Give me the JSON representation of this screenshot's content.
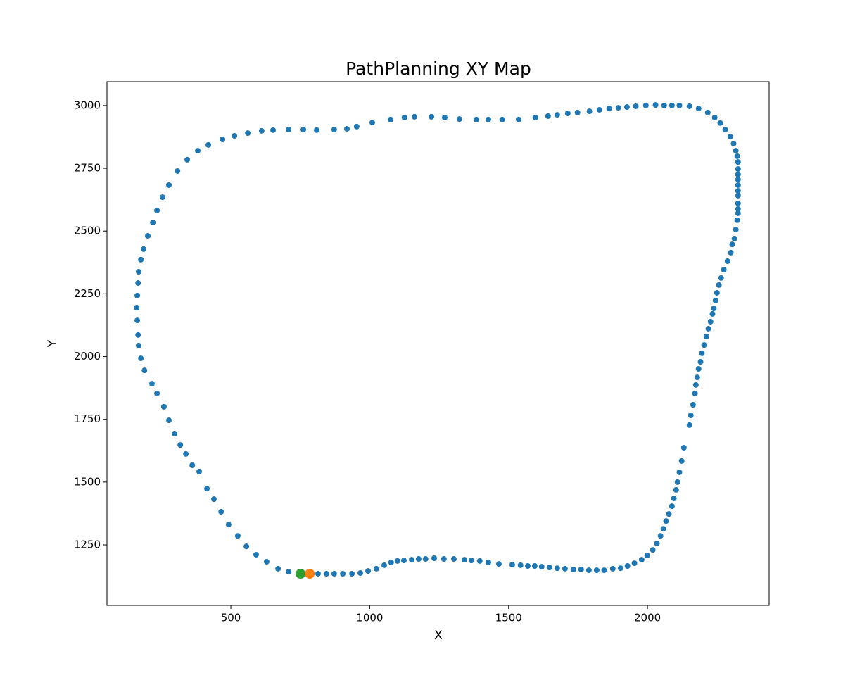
{
  "chart_data": {
    "type": "scatter",
    "title": "PathPlanning XY Map",
    "xlabel": "X",
    "ylabel": "Y",
    "xlim": [
      54,
      2438
    ],
    "ylim": [
      1009,
      3095
    ],
    "xticks": [
      500,
      1000,
      1500,
      2000
    ],
    "yticks": [
      1250,
      1500,
      1750,
      2000,
      2250,
      2500,
      2750,
      3000
    ],
    "series": [
      {
        "color": "#1f77b4",
        "size": 4,
        "x": [
          708,
          670,
          629,
          591,
          556,
          525,
          492,
          465,
          439,
          414,
          386,
          361,
          338,
          318,
          297,
          277,
          259,
          234,
          216,
          189,
          176,
          168,
          166,
          163,
          161,
          163,
          166,
          168,
          176,
          186,
          201,
          219,
          234,
          254,
          277,
          308,
          343,
          381,
          419,
          470,
          513,
          561,
          611,
          652,
          708,
          761,
          809,
          872,
          918,
          953,
          1009,
          1075,
          1125,
          1161,
          1222,
          1270,
          1323,
          1384,
          1427,
          1477,
          1536,
          1596,
          1642,
          1675,
          1713,
          1748,
          1791,
          1827,
          1862,
          1895,
          1926,
          1958,
          1994,
          2029,
          2060,
          2088,
          2115,
          2151,
          2184,
          2217,
          2242,
          2262,
          2280,
          2298,
          2310,
          2318,
          2323,
          2326,
          2326,
          2326,
          2326,
          2326,
          2326,
          2326,
          2326,
          2326,
          2326,
          2323,
          2318,
          2313,
          2305,
          2300,
          2288,
          2275,
          2265,
          2257,
          2250,
          2245,
          2239,
          2234,
          2227,
          2219,
          2212,
          2204,
          2196,
          2191,
          2184,
          2179,
          2174,
          2171,
          2164,
          2156,
          2151,
          2131,
          2123,
          2115,
          2108,
          2103,
          2095,
          2088,
          2077,
          2067,
          2057,
          2047,
          2034,
          2019,
          1999,
          1979,
          1953,
          1928,
          1903,
          1875,
          1844,
          1817,
          1789,
          1761,
          1733,
          1703,
          1675,
          1647,
          1619,
          1594,
          1569,
          1543,
          1513,
          1465,
          1427,
          1396,
          1366,
          1341,
          1303,
          1267,
          1232,
          1201,
          1176,
          1151,
          1123,
          1100,
          1077,
          1052,
          1024,
          994,
          966,
          936,
          903,
          872,
          844,
          814
        ],
        "values": [
          1143,
          1155,
          1183,
          1211,
          1244,
          1286,
          1331,
          1382,
          1432,
          1474,
          1542,
          1567,
          1612,
          1648,
          1693,
          1746,
          1800,
          1853,
          1892,
          1945,
          1993,
          2044,
          2086,
          2144,
          2195,
          2243,
          2293,
          2338,
          2386,
          2428,
          2481,
          2534,
          2582,
          2635,
          2683,
          2739,
          2784,
          2820,
          2843,
          2865,
          2879,
          2890,
          2899,
          2902,
          2904,
          2904,
          2902,
          2904,
          2907,
          2916,
          2932,
          2944,
          2952,
          2955,
          2955,
          2952,
          2946,
          2944,
          2944,
          2944,
          2944,
          2952,
          2958,
          2963,
          2969,
          2972,
          2977,
          2983,
          2988,
          2991,
          2994,
          2997,
          3000,
          3002,
          3000,
          3000,
          3000,
          2997,
          2988,
          2972,
          2952,
          2930,
          2904,
          2876,
          2848,
          2820,
          2798,
          2775,
          2747,
          2725,
          2705,
          2683,
          2660,
          2641,
          2610,
          2588,
          2571,
          2543,
          2506,
          2470,
          2447,
          2414,
          2380,
          2346,
          2313,
          2285,
          2254,
          2223,
          2192,
          2170,
          2139,
          2111,
          2080,
          2046,
          2013,
          1979,
          1951,
          1917,
          1887,
          1853,
          1808,
          1766,
          1727,
          1637,
          1584,
          1539,
          1500,
          1469,
          1435,
          1404,
          1373,
          1345,
          1314,
          1286,
          1256,
          1230,
          1208,
          1191,
          1177,
          1166,
          1157,
          1155,
          1149,
          1149,
          1149,
          1152,
          1152,
          1155,
          1157,
          1160,
          1163,
          1166,
          1166,
          1169,
          1171,
          1174,
          1180,
          1186,
          1188,
          1191,
          1194,
          1194,
          1197,
          1194,
          1194,
          1191,
          1188,
          1186,
          1180,
          1169,
          1155,
          1146,
          1138,
          1135,
          1135,
          1135,
          1135,
          1135
        ]
      },
      {
        "color": "#2ca02c",
        "size": 7,
        "x": [
          751
        ],
        "values": [
          1135
        ]
      },
      {
        "color": "#ff7f0e",
        "size": 7,
        "x": [
          784
        ],
        "values": [
          1135
        ]
      }
    ]
  }
}
